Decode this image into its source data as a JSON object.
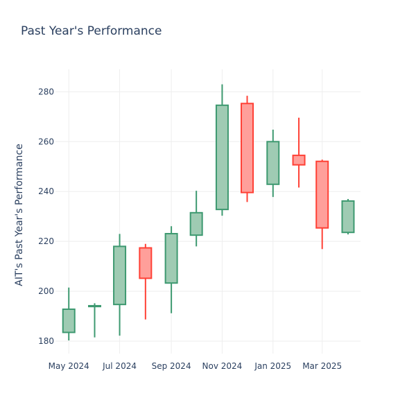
{
  "chart_data": {
    "type": "candlestick",
    "title": "Past Year's Performance",
    "xlabel": "",
    "ylabel": "AIT's Past Year's Performance",
    "ylim": [
      175,
      289
    ],
    "xlim": [
      "2024-04-15",
      "2025-04-16"
    ],
    "grid": true,
    "colors": {
      "increasing_line": "#3d9970",
      "increasing_fill": "#9fcbb3",
      "decreasing_line": "#ff4136",
      "decreasing_fill": "#ff9f9a",
      "grid": "#eeeeee",
      "text": "#2a3f5f"
    },
    "x_ticks": [
      {
        "date": "2024-05-01",
        "label": "May 2024"
      },
      {
        "date": "2024-07-01",
        "label": "Jul 2024"
      },
      {
        "date": "2024-09-01",
        "label": "Sep 2024"
      },
      {
        "date": "2024-11-01",
        "label": "Nov 2024"
      },
      {
        "date": "2025-01-01",
        "label": "Jan 2025"
      },
      {
        "date": "2025-03-01",
        "label": "Mar 2025"
      }
    ],
    "y_ticks": [
      180,
      200,
      220,
      240,
      260,
      280
    ],
    "candles": [
      {
        "date": "2024-05-01",
        "open": 183.5,
        "high": 201.5,
        "low": 180.3,
        "close": 192.8
      },
      {
        "date": "2024-06-01",
        "open": 194.0,
        "high": 195.2,
        "low": 181.5,
        "close": 194.2
      },
      {
        "date": "2024-07-01",
        "open": 194.7,
        "high": 223.0,
        "low": 182.2,
        "close": 218.0
      },
      {
        "date": "2024-08-01",
        "open": 217.4,
        "high": 219.0,
        "low": 188.7,
        "close": 205.2
      },
      {
        "date": "2024-09-01",
        "open": 203.3,
        "high": 226.1,
        "low": 191.2,
        "close": 223.1
      },
      {
        "date": "2024-10-01",
        "open": 222.5,
        "high": 240.3,
        "low": 218.0,
        "close": 231.5
      },
      {
        "date": "2024-11-01",
        "open": 232.8,
        "high": 283.0,
        "low": 230.3,
        "close": 274.6
      },
      {
        "date": "2024-12-01",
        "open": 275.3,
        "high": 278.4,
        "low": 235.8,
        "close": 239.6
      },
      {
        "date": "2025-01-01",
        "open": 242.9,
        "high": 264.8,
        "low": 237.8,
        "close": 260.0
      },
      {
        "date": "2025-02-01",
        "open": 254.5,
        "high": 269.6,
        "low": 241.6,
        "close": 250.7
      },
      {
        "date": "2025-03-01",
        "open": 252.1,
        "high": 252.8,
        "low": 216.9,
        "close": 225.4
      },
      {
        "date": "2025-04-01",
        "open": 223.6,
        "high": 237.0,
        "low": 222.8,
        "close": 236.2
      }
    ]
  }
}
